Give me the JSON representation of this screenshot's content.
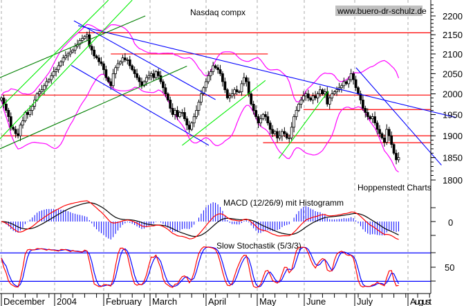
{
  "chart_data": {
    "type": "candlestick",
    "title": "Nasdaq compx",
    "watermark": "www.buero-dr-schulz.de",
    "source": "Hoppenstedt Charts",
    "y_scale": "log",
    "ylim": [
      1780,
      2250
    ],
    "y_ticks": [
      2200,
      2150,
      2100,
      2050,
      2000,
      1950,
      1900,
      1850,
      1800
    ],
    "x_ticks": [
      "December",
      "2004",
      "February",
      "March",
      "April",
      "May",
      "June",
      "July",
      "August"
    ],
    "grid": "vertical dashed at month boundaries",
    "closes": [
      1990,
      1975,
      1960,
      1945,
      1920,
      1915,
      1905,
      1900,
      1925,
      1935,
      1955,
      1950,
      1960,
      1970,
      1985,
      2000,
      2005,
      2010,
      2020,
      2030,
      2035,
      2045,
      2055,
      2060,
      2070,
      2080,
      2090,
      2095,
      2100,
      2105,
      2110,
      2120,
      2125,
      2135,
      2140,
      2145,
      2150,
      2120,
      2110,
      2095,
      2090,
      2080,
      2075,
      2060,
      2040,
      2030,
      2020,
      2050,
      2065,
      2075,
      2080,
      2090,
      2085,
      2085,
      2070,
      2060,
      2050,
      2040,
      2030,
      2020,
      2030,
      2040,
      2045,
      2050,
      2040,
      2055,
      2045,
      2030,
      2015,
      2000,
      1985,
      1965,
      1950,
      1960,
      1945,
      1955,
      1955,
      1940,
      1925,
      1915,
      1930,
      1945,
      1960,
      1980,
      2000,
      2015,
      2030,
      2045,
      2055,
      2070,
      2065,
      2060,
      2050,
      2030,
      2010,
      1990,
      1995,
      2000,
      2010,
      2005,
      2005,
      2025,
      2040,
      2030,
      2000,
      1975,
      1960,
      1945,
      1930,
      1940,
      1950,
      1945,
      1930,
      1915,
      1905,
      1910,
      1895,
      1900,
      1910,
      1905,
      1895,
      1895,
      1920,
      1945,
      1960,
      1975,
      1985,
      1995,
      2000,
      1990,
      1985,
      1995,
      1990,
      2000,
      2010,
      2000,
      2005,
      1975,
      1990,
      2000,
      2005,
      2010,
      2015,
      2020,
      2030,
      2025,
      2035,
      2050,
      2035,
      2015,
      2000,
      1985,
      1965,
      1955,
      1945,
      1940,
      1945,
      1930,
      1915,
      1905,
      1895,
      1885,
      1915,
      1900,
      1880,
      1860,
      1845,
      1850
    ],
    "overlays": {
      "bollinger_color": "#ff00ff",
      "horizontal_levels": [
        {
          "price": 2155,
          "from_bar": 32,
          "to_bar": "end",
          "color": "#ff0000"
        },
        {
          "price": 2100,
          "from_bar": 46,
          "to_bar": 112,
          "color": "#ff0000"
        },
        {
          "price": 1997,
          "from_bar": 0,
          "to_bar": "end",
          "color": "#ff0000"
        },
        {
          "price": 1962,
          "from_bar": 127,
          "to_bar": "end",
          "color": "#ff0000"
        },
        {
          "price": 1900,
          "from_bar": 0,
          "to_bar": "end",
          "color": "#ff0000"
        },
        {
          "price": 1884,
          "from_bar": 110,
          "to_bar": "end",
          "color": "#ff0000"
        }
      ],
      "trendlines": [
        {
          "from": [
            30.5,
            2187
          ],
          "to": [
            90,
            1986
          ],
          "color": "#0000ff"
        },
        {
          "from": [
            32.3,
            2174
          ],
          "to": [
            191,
            1943
          ],
          "color": "#0000ff"
        },
        {
          "from": [
            29.4,
            2071
          ],
          "to": [
            87.2,
            1878
          ],
          "color": "#0000ff"
        },
        {
          "from": [
            149.1,
            2065
          ],
          "to": [
            185,
            1833
          ],
          "color": "#0000ff"
        },
        {
          "from": [
            -0.6,
            2040
          ],
          "to": [
            60.5,
            2200
          ],
          "color": "#008000"
        },
        {
          "from": [
            -0.6,
            1870
          ],
          "to": [
            78,
            2069
          ],
          "color": "#008000"
        },
        {
          "from": [
            -0.6,
            1965
          ],
          "to": [
            45,
            2243
          ],
          "color": "#00ee00"
        },
        {
          "from": [
            -0.6,
            1893
          ],
          "to": [
            55,
            2243
          ],
          "color": "#00ee00"
        },
        {
          "from": [
            76,
            1878
          ],
          "to": [
            111,
            2033
          ],
          "color": "#00ee00"
        },
        {
          "from": [
            116.6,
            1848
          ],
          "to": [
            137.5,
            2007
          ],
          "color": "#00ee00"
        }
      ]
    },
    "indicators": [
      {
        "label": "MACD (12/26/9) mit Histogramm",
        "ticks": [
          "0"
        ],
        "colors": {
          "macd": "#ff0000",
          "signal": "#000000",
          "histogram": "#0000ff"
        }
      },
      {
        "label": "Slow Stochastik (5/3/3)",
        "ticks": [
          "50"
        ],
        "levels": [
          20,
          80
        ],
        "colors": {
          "k": "#ff0000",
          "d": "#0000ff"
        }
      }
    ]
  }
}
